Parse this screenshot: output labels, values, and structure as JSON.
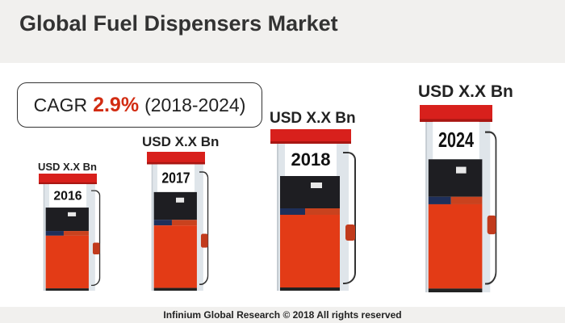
{
  "title": "Global Fuel Dispensers Market",
  "cagr": {
    "label": "CAGR",
    "value": "2.9%",
    "period": "(2018-2024)"
  },
  "accent_color": "#d22c12",
  "pumps": [
    {
      "year": "2016",
      "value_label": "USD X.X Bn"
    },
    {
      "year": "2017",
      "value_label": "USD X.X Bn"
    },
    {
      "year": "2018",
      "value_label": "USD X.X Bn"
    },
    {
      "year": "2024",
      "value_label": "USD X.X Bn"
    }
  ],
  "footer": "Infinium Global Research © 2018 All rights reserved"
}
